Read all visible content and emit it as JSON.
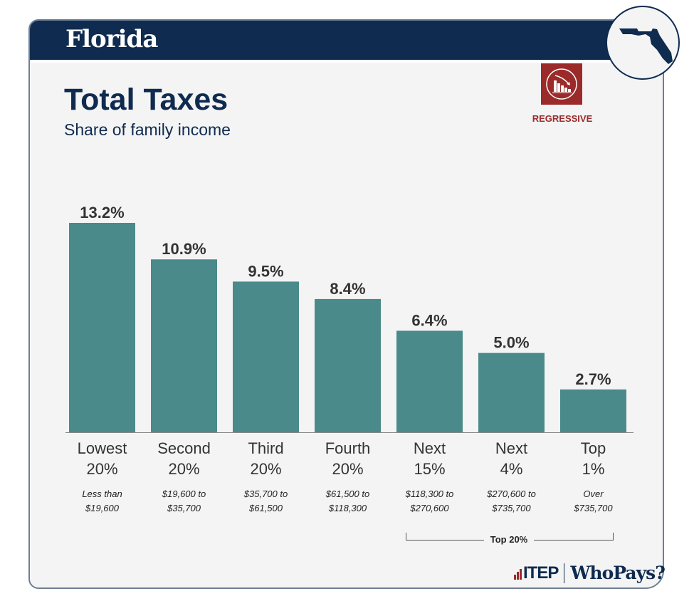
{
  "header": {
    "state": "Florida"
  },
  "title": "Total Taxes",
  "subtitle": "Share of family income",
  "badge": {
    "label": "REGRESSIVE",
    "icon": "regressive-chart-icon",
    "color": "#9b2b2b"
  },
  "chart_data": {
    "type": "bar",
    "categories": [
      [
        "Lowest",
        "20%"
      ],
      [
        "Second",
        "20%"
      ],
      [
        "Third",
        "20%"
      ],
      [
        "Fourth",
        "20%"
      ],
      [
        "Next",
        "15%"
      ],
      [
        "Next",
        "4%"
      ],
      [
        "Top",
        "1%"
      ]
    ],
    "income_ranges": [
      [
        "Less than",
        "$19,600"
      ],
      [
        "$19,600 to",
        "$35,700"
      ],
      [
        "$35,700 to",
        "$61,500"
      ],
      [
        "$61,500 to",
        "$118,300"
      ],
      [
        "$118,300 to",
        "$270,600"
      ],
      [
        "$270,600 to",
        "$735,700"
      ],
      [
        "Over",
        "$735,700"
      ]
    ],
    "values": [
      13.2,
      10.9,
      9.5,
      8.4,
      6.4,
      5.0,
      2.7
    ],
    "labels": [
      "13.2%",
      "10.9%",
      "9.5%",
      "8.4%",
      "6.4%",
      "5.0%",
      "2.7%"
    ],
    "bar_color": "#4a8a8a",
    "ylim": [
      0,
      13.2
    ],
    "grid": false,
    "group_label": "Top 20%"
  },
  "footer": {
    "itep": "ITEP",
    "whopays": "WhoPays?"
  }
}
